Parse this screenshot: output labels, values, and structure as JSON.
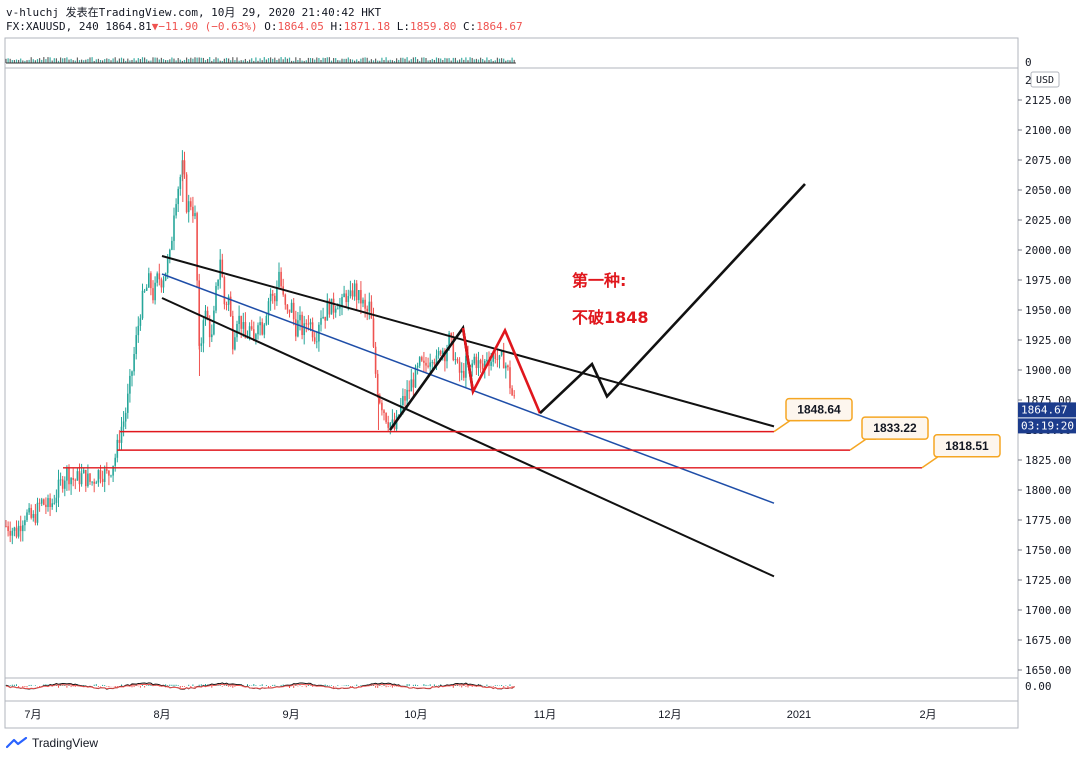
{
  "header": {
    "line1": "v-hluchj 发表在TradingView.com, 10月 29, 2020 21:40:42 HKT",
    "symbol": "FX:XAUUSD, 240",
    "last": "1864.81",
    "change": "−11.90 (−0.63%)",
    "o_label": "O:",
    "o_val": "1864.05",
    "h_label": "H:",
    "h_val": "1871.18",
    "l_label": "L:",
    "l_val": "1859.80",
    "c_label": "C:",
    "c_val": "1864.67"
  },
  "watermark": "TradingView",
  "currency": "USD",
  "colors": {
    "up": "#26a69a",
    "down": "#ef5350",
    "red": "#e0171d",
    "blue": "#1f4ea8",
    "orange": "#f5a623"
  },
  "chart_data": {
    "type": "candlestick",
    "symbol": "FX:XAUUSD",
    "interval": "240",
    "x_labels": [
      {
        "label": "7月",
        "day": 0
      },
      {
        "label": "8月",
        "day": 31
      },
      {
        "label": "9月",
        "day": 62
      },
      {
        "label": "10月",
        "day": 92
      },
      {
        "label": "11月",
        "day": 123
      },
      {
        "label": "12月",
        "day": 153
      },
      {
        "label": "2021",
        "day": 184
      },
      {
        "label": "2月",
        "day": 215
      }
    ],
    "y_ticks": [
      1650,
      1675,
      1700,
      1725,
      1750,
      1775,
      1800,
      1825,
      1850,
      1875,
      1900,
      1925,
      1950,
      1975,
      2000,
      2025,
      2050,
      2075,
      2100,
      2125
    ],
    "ylim": [
      1645,
      2150
    ],
    "price_path": [
      [
        -6,
        1770
      ],
      [
        -4,
        1765
      ],
      [
        -2,
        1780
      ],
      [
        0,
        1775
      ],
      [
        2,
        1790
      ],
      [
        4,
        1785
      ],
      [
        6,
        1800
      ],
      [
        8,
        1815
      ],
      [
        10,
        1808
      ],
      [
        12,
        1812
      ],
      [
        14,
        1806
      ],
      [
        16,
        1816
      ],
      [
        18,
        1812
      ],
      [
        20,
        1830
      ],
      [
        21,
        1850
      ],
      [
        22,
        1860
      ],
      [
        23,
        1880
      ],
      [
        24,
        1905
      ],
      [
        25,
        1930
      ],
      [
        26,
        1955
      ],
      [
        27,
        1965
      ],
      [
        28,
        1975
      ],
      [
        29,
        1960
      ],
      [
        30,
        1978
      ],
      [
        31,
        1975
      ],
      [
        32,
        1985
      ],
      [
        33,
        1995
      ],
      [
        34,
        2040
      ],
      [
        35,
        2055
      ],
      [
        36,
        2070
      ],
      [
        37,
        2035
      ],
      [
        38,
        2040
      ],
      [
        39,
        2025
      ],
      [
        40,
        1905
      ],
      [
        41,
        1950
      ],
      [
        42,
        1940
      ],
      [
        43,
        1925
      ],
      [
        44,
        1965
      ],
      [
        45,
        1995
      ],
      [
        46,
        1955
      ],
      [
        47,
        1960
      ],
      [
        48,
        1925
      ],
      [
        49,
        1945
      ],
      [
        50,
        1940
      ],
      [
        51,
        1925
      ],
      [
        52,
        1935
      ],
      [
        53,
        1920
      ],
      [
        54,
        1945
      ],
      [
        55,
        1935
      ],
      [
        56,
        1950
      ],
      [
        57,
        1965
      ],
      [
        58,
        1955
      ],
      [
        59,
        1985
      ],
      [
        60,
        1960
      ],
      [
        61,
        1945
      ],
      [
        62,
        1955
      ],
      [
        63,
        1935
      ],
      [
        64,
        1940
      ],
      [
        65,
        1930
      ],
      [
        66,
        1945
      ],
      [
        67,
        1935
      ],
      [
        68,
        1928
      ],
      [
        69,
        1948
      ],
      [
        70,
        1945
      ],
      [
        71,
        1955
      ],
      [
        72,
        1950
      ],
      [
        73,
        1960
      ],
      [
        74,
        1950
      ],
      [
        75,
        1965
      ],
      [
        76,
        1955
      ],
      [
        77,
        1970
      ],
      [
        78,
        1960
      ],
      [
        79,
        1958
      ],
      [
        80,
        1945
      ],
      [
        81,
        1955
      ],
      [
        82,
        1905
      ],
      [
        83,
        1880
      ],
      [
        84,
        1870
      ],
      [
        85,
        1860
      ],
      [
        86,
        1855
      ],
      [
        87,
        1850
      ],
      [
        88,
        1865
      ],
      [
        89,
        1875
      ],
      [
        90,
        1880
      ],
      [
        91,
        1890
      ],
      [
        92,
        1895
      ],
      [
        93,
        1905
      ],
      [
        94,
        1900
      ],
      [
        95,
        1910
      ],
      [
        96,
        1915
      ],
      [
        97,
        1905
      ],
      [
        98,
        1920
      ],
      [
        99,
        1915
      ],
      [
        100,
        1925
      ],
      [
        101,
        1915
      ],
      [
        102,
        1900
      ],
      [
        103,
        1895
      ],
      [
        104,
        1905
      ],
      [
        105,
        1898
      ],
      [
        106,
        1910
      ],
      [
        107,
        1905
      ],
      [
        108,
        1900
      ],
      [
        109,
        1912
      ],
      [
        110,
        1908
      ],
      [
        111,
        1915
      ],
      [
        112,
        1905
      ],
      [
        113,
        1910
      ],
      [
        114,
        1900
      ],
      [
        115,
        1880
      ],
      [
        116,
        1870
      ]
    ],
    "x_ref_points": [
      [
        31,
        162
      ],
      [
        62,
        287
      ],
      [
        92,
        418
      ],
      [
        123,
        545
      ]
    ],
    "channel_lines": [
      {
        "name": "channel-upper",
        "color": "black",
        "points": [
          [
            162,
            1995
          ],
          [
            774,
            1853
          ]
        ]
      },
      {
        "name": "channel-lower",
        "color": "black",
        "points": [
          [
            162,
            1960
          ],
          [
            774,
            1728
          ]
        ]
      },
      {
        "name": "channel-mid",
        "color": "blue",
        "points": [
          [
            162,
            1980
          ],
          [
            774,
            1789
          ]
        ]
      }
    ],
    "pattern_paths": [
      {
        "name": "black-bounce-path",
        "color": "black",
        "points": [
          [
            390,
            1850
          ],
          [
            463,
            1935
          ],
          [
            473,
            1882
          ]
        ]
      },
      {
        "name": "red-w-pattern",
        "color": "red",
        "points": [
          [
            463,
            1935
          ],
          [
            473,
            1882
          ],
          [
            505,
            1933
          ],
          [
            540,
            1864
          ]
        ]
      },
      {
        "name": "projection-path",
        "color": "black",
        "points": [
          [
            540,
            1864
          ],
          [
            592,
            1905
          ],
          [
            607,
            1878
          ],
          [
            805,
            2055
          ]
        ]
      }
    ],
    "levels": [
      {
        "price": 1848.64,
        "label": "1848.64",
        "from_x": 120,
        "to_x": 774
      },
      {
        "price": 1833.22,
        "label": "1833.22",
        "from_x": 117,
        "to_x": 850
      },
      {
        "price": 1818.51,
        "label": "1818.51",
        "from_x": 63,
        "to_x": 922
      }
    ],
    "annotations": [
      {
        "text": "第一种:",
        "price": 1970,
        "x": 572
      },
      {
        "text": "不破1848",
        "price": 1939,
        "x": 572
      }
    ],
    "price_marker": {
      "price": 1864.67,
      "label": "1864.67",
      "countdown": "03:19:20"
    },
    "top_panel_label": "0",
    "top_panel_axis_label": "2",
    "bottom_panel_label": "0.00"
  }
}
